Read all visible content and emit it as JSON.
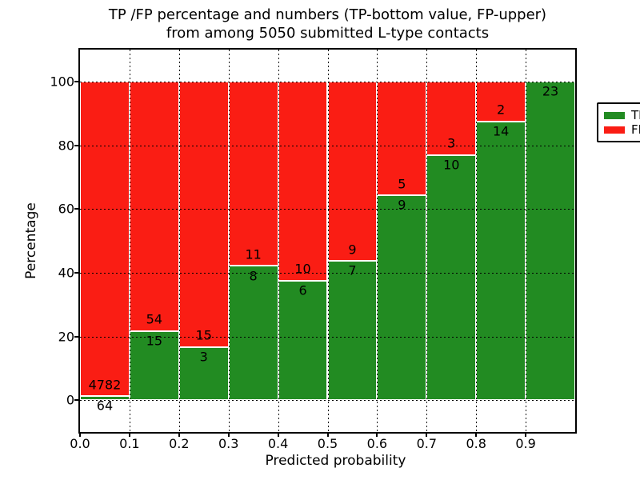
{
  "title": {
    "line1": "TP /FP percentage and numbers (TP-bottom value, FP-upper)",
    "line2": "from among 5050 submitted L-type contacts"
  },
  "axes": {
    "xlabel": "Predicted probability",
    "ylabel": "Percentage"
  },
  "legend": {
    "entries": [
      {
        "label": "TP",
        "color": "#228b22"
      },
      {
        "label": "FP",
        "color": "#fa1d14"
      }
    ]
  },
  "chart_data": {
    "type": "bar",
    "subtype": "stacked-percentage",
    "title": "TP /FP percentage and numbers (TP-bottom value, FP-upper)\nfrom among 5050 submitted L-type contacts",
    "xlabel": "Predicted probability",
    "ylabel": "Percentage",
    "xlim": [
      0.0,
      1.0
    ],
    "ylim": [
      -10,
      110
    ],
    "bin_start": [
      0.0,
      0.1,
      0.2,
      0.3,
      0.4,
      0.5,
      0.6,
      0.7,
      0.8,
      0.9
    ],
    "bin_width": 0.1,
    "x_tick_labels": [
      "0.0",
      "0.1",
      "0.2",
      "0.3",
      "0.4",
      "0.5",
      "0.6",
      "0.7",
      "0.8",
      "0.9"
    ],
    "y_tick_values": [
      0,
      20,
      40,
      60,
      80,
      100
    ],
    "y_tick_labels": [
      "0",
      "20",
      "40",
      "60",
      "80",
      "100"
    ],
    "grid": "dotted-black-both-axes",
    "bar_edge_color": "#ffffff",
    "legend_position": "upper-right",
    "series": [
      {
        "name": "TP",
        "color": "#228b22",
        "counts": [
          64,
          15,
          3,
          8,
          6,
          7,
          9,
          10,
          14,
          23
        ]
      },
      {
        "name": "FP",
        "color": "#fa1d14",
        "counts": [
          4782,
          54,
          15,
          11,
          10,
          9,
          5,
          3,
          2,
          0
        ]
      }
    ],
    "tp_percent_of_bin": [
      1.32,
      21.74,
      16.67,
      42.11,
      37.5,
      43.75,
      64.29,
      76.92,
      87.5,
      100.0
    ],
    "total_contacts": 5050
  }
}
